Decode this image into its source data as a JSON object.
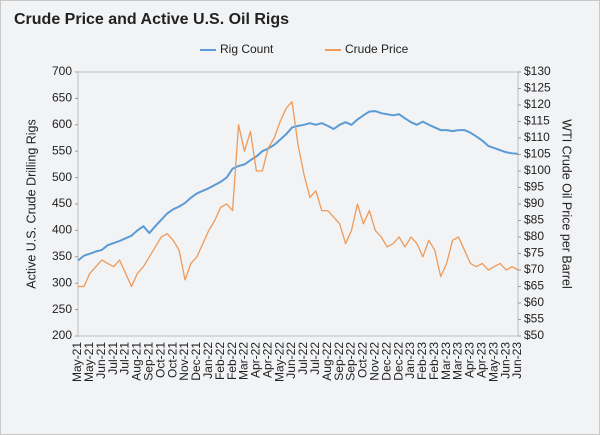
{
  "chart_data": {
    "type": "line",
    "title": "Crude Price and Active U.S. Oil Rigs",
    "y_label": "Active U.S. Crude Drilling Rigs",
    "y2_label": "WTI Crude Oil Price per Barrel",
    "legend": "top",
    "categories": [
      "May-21",
      null,
      "May-21",
      null,
      "Jun-21",
      null,
      "Jul-21",
      null,
      "Jul-21",
      null,
      "Aug-21",
      null,
      "Sep-21",
      null,
      "Oct-21",
      null,
      "Oct-21",
      null,
      "Nov-21",
      null,
      "Dec-21",
      null,
      "Jan-22",
      null,
      "Feb-22",
      null,
      "Feb-22",
      null,
      "Mar-22",
      null,
      "Apr-22",
      null,
      "Apr-22",
      null,
      "May-22",
      null,
      "Jun-22",
      null,
      "Jul-22",
      null,
      "Jul-22",
      null,
      "Aug-22",
      null,
      "Sep-22",
      null,
      "Sep-22",
      null,
      "Oct-22",
      null,
      "Nov-22",
      null,
      "Dec-22",
      null,
      "Dec-22",
      null,
      "Jan-23",
      null,
      "Feb-23",
      null,
      "Feb-23",
      null,
      "Mar-23",
      null,
      "Mar-23",
      null,
      "Apr-23",
      null,
      "Apr-23",
      null,
      "May-23",
      null,
      "Jun-23",
      null,
      "Jun-23"
    ],
    "series": [
      {
        "name": "Rig Count",
        "color": "#5b9bd5",
        "axis": "y",
        "values": [
          343,
          352,
          356,
          360,
          363,
          372,
          376,
          380,
          385,
          390,
          400,
          408,
          395,
          408,
          420,
          432,
          440,
          445,
          452,
          462,
          470,
          475,
          480,
          486,
          492,
          500,
          517,
          522,
          525,
          533,
          540,
          550,
          555,
          562,
          572,
          582,
          595,
          598,
          600,
          603,
          600,
          603,
          598,
          592,
          600,
          605,
          600,
          610,
          618,
          625,
          626,
          622,
          620,
          618,
          620,
          612,
          605,
          600,
          606,
          600,
          595,
          590,
          590,
          588,
          590,
          590,
          585,
          578,
          570,
          560,
          556,
          552,
          548,
          546,
          545
        ]
      },
      {
        "name": "Crude Price",
        "color": "#ed9a5a",
        "axis": "y2",
        "values": [
          65,
          65,
          69,
          71,
          73,
          72,
          71,
          73,
          69,
          65,
          69,
          71,
          74,
          77,
          80,
          81,
          79,
          76,
          67,
          72,
          74,
          78,
          82,
          85,
          89,
          90,
          88,
          114,
          106,
          112,
          100,
          100,
          107,
          110,
          115,
          119,
          121,
          108,
          99,
          92,
          94,
          88,
          88,
          86,
          84,
          78,
          82,
          90,
          84,
          88,
          82,
          80,
          77,
          78,
          80,
          77,
          80,
          78,
          74,
          79,
          76,
          68,
          72,
          79,
          80,
          76,
          72,
          71,
          72,
          70,
          71,
          72,
          70,
          71,
          70
        ]
      }
    ],
    "ylim": [
      200,
      700
    ],
    "yticks": [
      200,
      250,
      300,
      350,
      400,
      450,
      500,
      550,
      600,
      650,
      700
    ],
    "y2lim": [
      50,
      130
    ],
    "y2ticks": [
      {
        "value": 50,
        "label": "$50"
      },
      {
        "value": 55,
        "label": "$55"
      },
      {
        "value": 60,
        "label": "$60"
      },
      {
        "value": 65,
        "label": "$65"
      },
      {
        "value": 70,
        "label": "$70"
      },
      {
        "value": 75,
        "label": "$75"
      },
      {
        "value": 80,
        "label": "$80"
      },
      {
        "value": 85,
        "label": "$85"
      },
      {
        "value": 90,
        "label": "$90"
      },
      {
        "value": 95,
        "label": "$95"
      },
      {
        "value": 100,
        "label": "$100"
      },
      {
        "value": 105,
        "label": "$105"
      },
      {
        "value": 110,
        "label": "$110"
      },
      {
        "value": 115,
        "label": "$115"
      },
      {
        "value": 120,
        "label": "$120"
      },
      {
        "value": 125,
        "label": "$125"
      },
      {
        "value": 130,
        "label": "$130"
      }
    ]
  }
}
